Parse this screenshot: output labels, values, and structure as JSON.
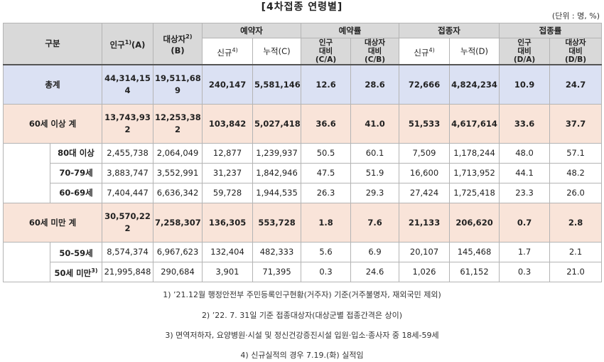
{
  "title": "[4차접종 연령별]",
  "unit": "(단위 : 명, %)",
  "headers": {
    "category": "구분",
    "population": "인구",
    "population_sup": "1)",
    "population_code": "(A)",
    "target": "대상자",
    "target_sup": "2)",
    "target_code": "(B)",
    "reserved": "예약자",
    "reserved_new": "신규",
    "reserved_new_sup": "4)",
    "reserved_cum": "누적(C)",
    "reserve_rate": "예약률",
    "rate_pop": [
      "인구",
      "대비",
      "(C/A)"
    ],
    "rate_target": [
      "대상자",
      "대비",
      "(C/B)"
    ],
    "vaccinated": "접종자",
    "vaccinated_new": "신규",
    "vaccinated_new_sup": "4)",
    "vaccinated_cum": "누적(D)",
    "vacc_rate": "접종률",
    "vrate_pop": [
      "인구",
      "대비",
      "(D/A)"
    ],
    "vrate_target": [
      "대상자",
      "대비",
      "(D/B)"
    ]
  },
  "total": {
    "label": "총계",
    "population": [
      "44,314,15",
      "4"
    ],
    "target": [
      "19,511,68",
      "9"
    ],
    "res_new": "240,147",
    "res_cum": "5,581,146",
    "res_rate_a": "12.6",
    "res_rate_b": "28.6",
    "vac_new": "72,666",
    "vac_cum": "4,824,234",
    "vac_rate_a": "10.9",
    "vac_rate_b": "24.7"
  },
  "over60": {
    "label": "60세 이상 계",
    "population": [
      "13,743,93",
      "2"
    ],
    "target": [
      "12,253,38",
      "2"
    ],
    "res_new": "103,842",
    "res_cum": "5,027,418",
    "res_rate_a": "36.6",
    "res_rate_b": "41.0",
    "vac_new": "51,533",
    "vac_cum": "4,617,614",
    "vac_rate_a": "33.6",
    "vac_rate_b": "37.7",
    "rows": [
      {
        "label": "80대 이상",
        "population": "2,455,738",
        "target": "2,064,049",
        "res_new": "12,877",
        "res_cum": "1,239,937",
        "res_rate_a": "50.5",
        "res_rate_b": "60.1",
        "vac_new": "7,509",
        "vac_cum": "1,178,244",
        "vac_rate_a": "48.0",
        "vac_rate_b": "57.1"
      },
      {
        "label": "70-79세",
        "population": "3,883,747",
        "target": "3,552,991",
        "res_new": "31,237",
        "res_cum": "1,842,946",
        "res_rate_a": "47.5",
        "res_rate_b": "51.9",
        "vac_new": "16,600",
        "vac_cum": "1,713,952",
        "vac_rate_a": "44.1",
        "vac_rate_b": "48.2"
      },
      {
        "label": "60-69세",
        "population": "7,404,447",
        "target": "6,636,342",
        "res_new": "59,728",
        "res_cum": "1,944,535",
        "res_rate_a": "26.3",
        "res_rate_b": "29.3",
        "vac_new": "27,424",
        "vac_cum": "1,725,418",
        "vac_rate_a": "23.3",
        "vac_rate_b": "26.0"
      }
    ]
  },
  "under60": {
    "label": "60세 미만 계",
    "population": [
      "30,570,22",
      "2"
    ],
    "target": "7,258,307",
    "res_new": "136,305",
    "res_cum": "553,728",
    "res_rate_a": "1.8",
    "res_rate_b": "7.6",
    "vac_new": "21,133",
    "vac_cum": "206,620",
    "vac_rate_a": "0.7",
    "vac_rate_b": "2.8",
    "rows": [
      {
        "label": "50-59세",
        "label_sup": "",
        "population": "8,574,374",
        "target": "6,967,623",
        "res_new": "132,404",
        "res_cum": "482,333",
        "res_rate_a": "5.6",
        "res_rate_b": "6.9",
        "vac_new": "20,107",
        "vac_cum": "145,468",
        "vac_rate_a": "1.7",
        "vac_rate_b": "2.1"
      },
      {
        "label": "50세 미만",
        "label_sup": "3)",
        "population": "21,995,848",
        "target": "290,684",
        "res_new": "3,901",
        "res_cum": "71,395",
        "res_rate_a": "0.3",
        "res_rate_b": "24.6",
        "vac_new": "1,026",
        "vac_cum": "61,152",
        "vac_rate_a": "0.3",
        "vac_rate_b": "21.0"
      }
    ]
  },
  "notes": [
    "1) ’21.12월 행정안전부 주민등록인구현황(거주자) 기준(거주불명자, 재외국민 제외)",
    "2) ’22. 7. 31일 기준 접종대상자(대상군별 접종간격은 상이)",
    "3) 면역저하자, 요양병원·시설 및 정신건강증진시설 입원·입소·종사자 중 18세-59세",
    "4) 신규실적의 경우 7.19.(화) 실적임"
  ]
}
